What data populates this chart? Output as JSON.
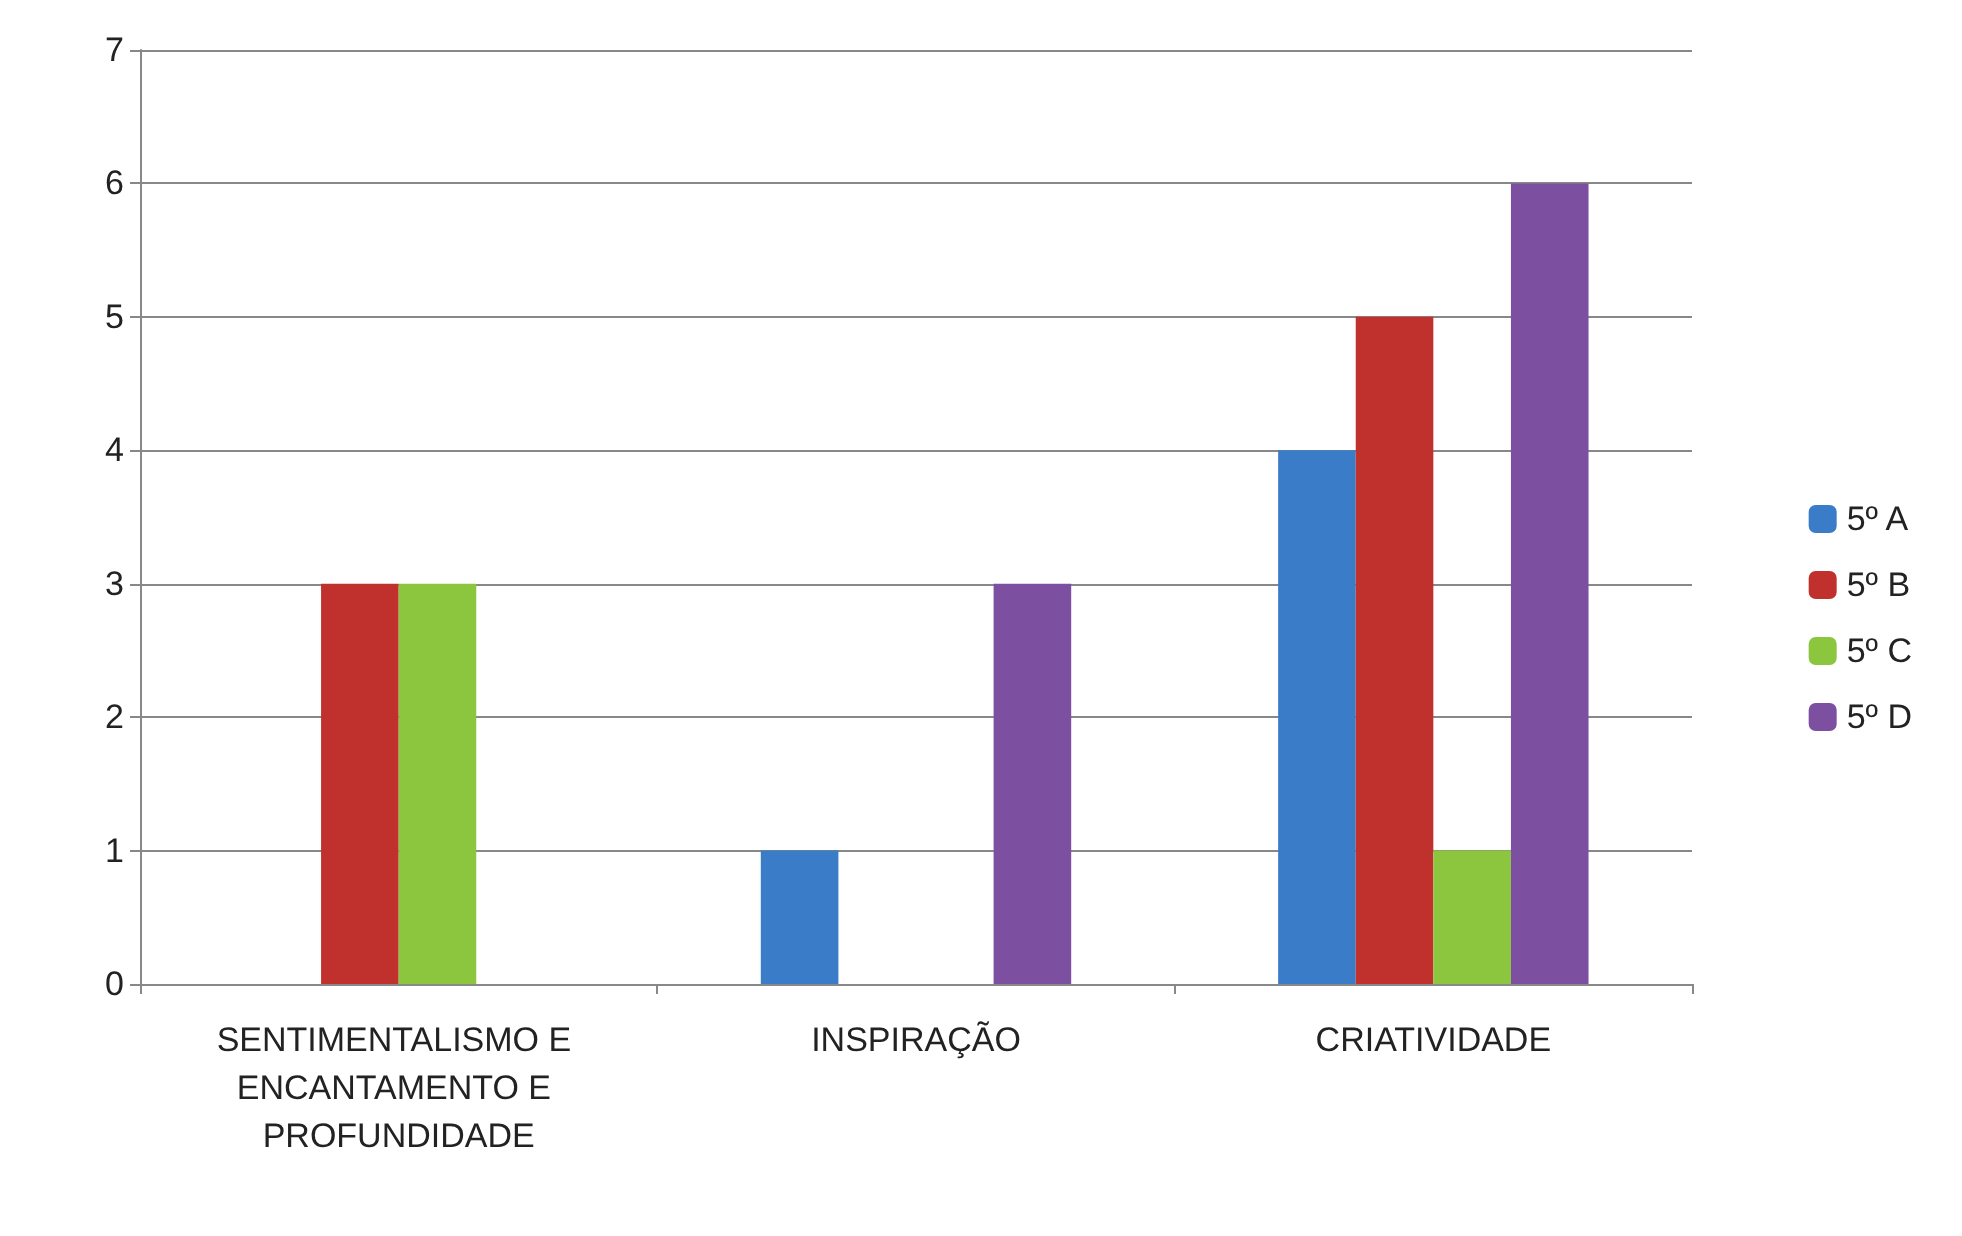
{
  "chart_data": {
    "type": "bar",
    "categories": [
      "SENTIMENTALISMO E ENCANTAMENTO E PROFUNDIDADE",
      "INSPIRAÇÃO",
      "CRIATIVIDADE"
    ],
    "series": [
      {
        "name": "5º A",
        "color": "#3a7cc8",
        "values": [
          0,
          1,
          4
        ]
      },
      {
        "name": "5º B",
        "color": "#c0302c",
        "values": [
          3,
          0,
          5
        ]
      },
      {
        "name": "5º C",
        "color": "#8cc63e",
        "values": [
          3,
          0,
          1
        ]
      },
      {
        "name": "5º D",
        "color": "#7d4fa0",
        "values": [
          0,
          3,
          6
        ]
      }
    ],
    "ylim": [
      0,
      7
    ],
    "yticks": [
      0,
      1,
      2,
      3,
      4,
      5,
      6,
      7
    ],
    "grid": "y",
    "legend": "right"
  }
}
